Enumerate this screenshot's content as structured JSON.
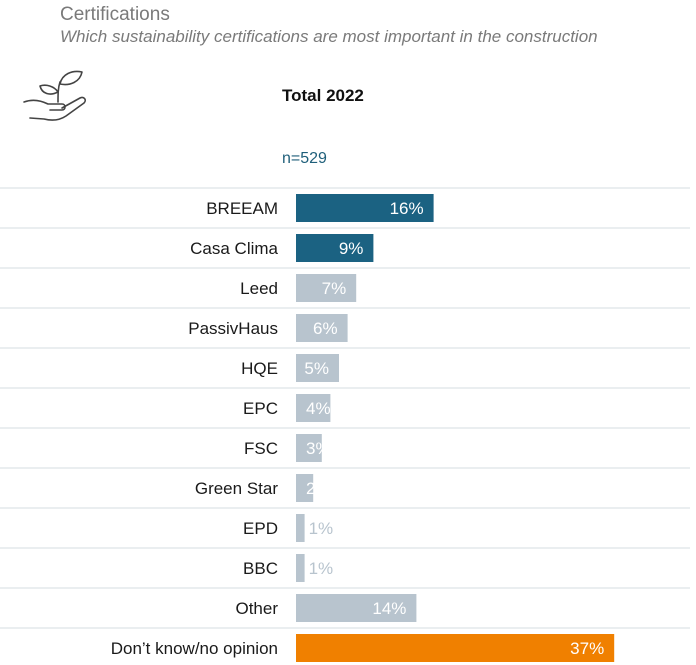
{
  "header": {
    "title": "Certifications",
    "subtitle": "Which sustainability certifications are most important in the construction",
    "icon": "hand-with-plant-icon",
    "column_label": "Total 2022",
    "sample_size": "n=529"
  },
  "colors": {
    "primary": "#1b6282",
    "secondary": "#b8c4ce",
    "dont_know": "#f08000",
    "gridline": "#d6dce1"
  },
  "chart_data": {
    "type": "bar",
    "orientation": "horizontal",
    "title": "",
    "xlabel": "",
    "ylabel": "",
    "xlim": [
      0,
      40
    ],
    "grid": false,
    "categories": [
      "BREEAM",
      "Casa Clima",
      "Leed",
      "PassivHaus",
      "HQE",
      "EPC",
      "FSC",
      "Green Star",
      "EPD",
      "BBC",
      "Other",
      "Don’t know/no opinion"
    ],
    "values": [
      16,
      9,
      7,
      6,
      5,
      4,
      3,
      2,
      1,
      1,
      14,
      37
    ],
    "value_labels": [
      "16%",
      "9%",
      "7%",
      "6%",
      "5%",
      "4%",
      "3%",
      "2",
      "1%",
      "1%",
      "14%",
      "37%"
    ],
    "bar_color_groups": [
      "primary",
      "primary",
      "secondary",
      "secondary",
      "secondary",
      "secondary",
      "secondary",
      "secondary",
      "secondary",
      "secondary",
      "secondary",
      "dont_know"
    ]
  }
}
